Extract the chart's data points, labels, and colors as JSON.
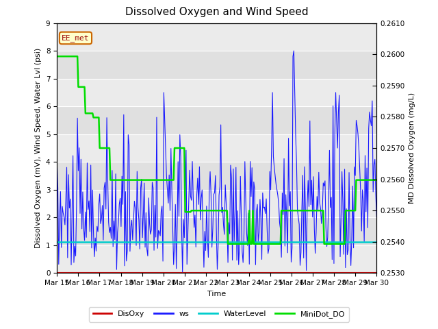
{
  "title": "Dissolved Oxygen and Wind Speed",
  "ylabel_left": "Dissolved Oxygen (mV), Wind Speed, Water Lvl (psi)",
  "ylabel_right": "MD Dissolved Oxygen (mg/L)",
  "xlabel": "Time",
  "ylim_left": [
    0.0,
    9.0
  ],
  "ylim_right": [
    0.253,
    0.261
  ],
  "station_label": "EE_met",
  "xtick_labels": [
    "Mar 15",
    "Mar 16",
    "Mar 17",
    "Mar 18",
    "Mar 19",
    "Mar 20",
    "Mar 21",
    "Mar 22",
    "Mar 23",
    "Mar 24",
    "Mar 25",
    "Mar 26",
    "Mar 27",
    "Mar 28",
    "Mar 29",
    "Mar 30"
  ],
  "ytick_left": [
    0.0,
    1.0,
    2.0,
    3.0,
    4.0,
    5.0,
    6.0,
    7.0,
    8.0,
    9.0
  ],
  "ytick_right": [
    0.253,
    0.254,
    0.255,
    0.256,
    0.257,
    0.258,
    0.259,
    0.26,
    0.261
  ],
  "plot_bg_color": "#e0e0e0",
  "plot_inner_color": "#ebebeb",
  "ws_color": "#1a1aff",
  "disoxy_color": "#cc0000",
  "waterlevel_color": "#00cccc",
  "minidot_color": "#00dd00",
  "ws_linewidth": 0.8,
  "disoxy_linewidth": 1.5,
  "waterlevel_linewidth": 1.8,
  "minidot_linewidth": 1.8,
  "grid_color": "#ffffff",
  "title_fontsize": 11,
  "label_fontsize": 8,
  "tick_fontsize": 7.5,
  "legend_fontsize": 8,
  "n_days": 15,
  "n_points": 360,
  "random_seed": 10,
  "ws_base_mean": 2.0,
  "ws_base_std": 1.5,
  "waterlevel_value": 1.13,
  "minidot_x": [
    0,
    0.5,
    1.0,
    1.3,
    1.7,
    2.0,
    2.5,
    3.0,
    4.0,
    5.0,
    5.5,
    6.0,
    6.1,
    6.3,
    7.0,
    8.0,
    9.0,
    9.5,
    10.0,
    10.5,
    11.0,
    12.0,
    12.5,
    13.0,
    13.5,
    14.0,
    14.5,
    14.8,
    15.0
  ],
  "minidot_y": [
    7.8,
    7.8,
    6.7,
    5.75,
    5.6,
    4.5,
    3.35,
    3.35,
    3.35,
    3.35,
    4.5,
    2.2,
    2.2,
    2.25,
    2.25,
    1.05,
    1.05,
    1.05,
    1.05,
    2.25,
    2.25,
    2.25,
    1.05,
    1.05,
    2.25,
    3.35,
    3.35,
    3.35,
    3.35
  ]
}
